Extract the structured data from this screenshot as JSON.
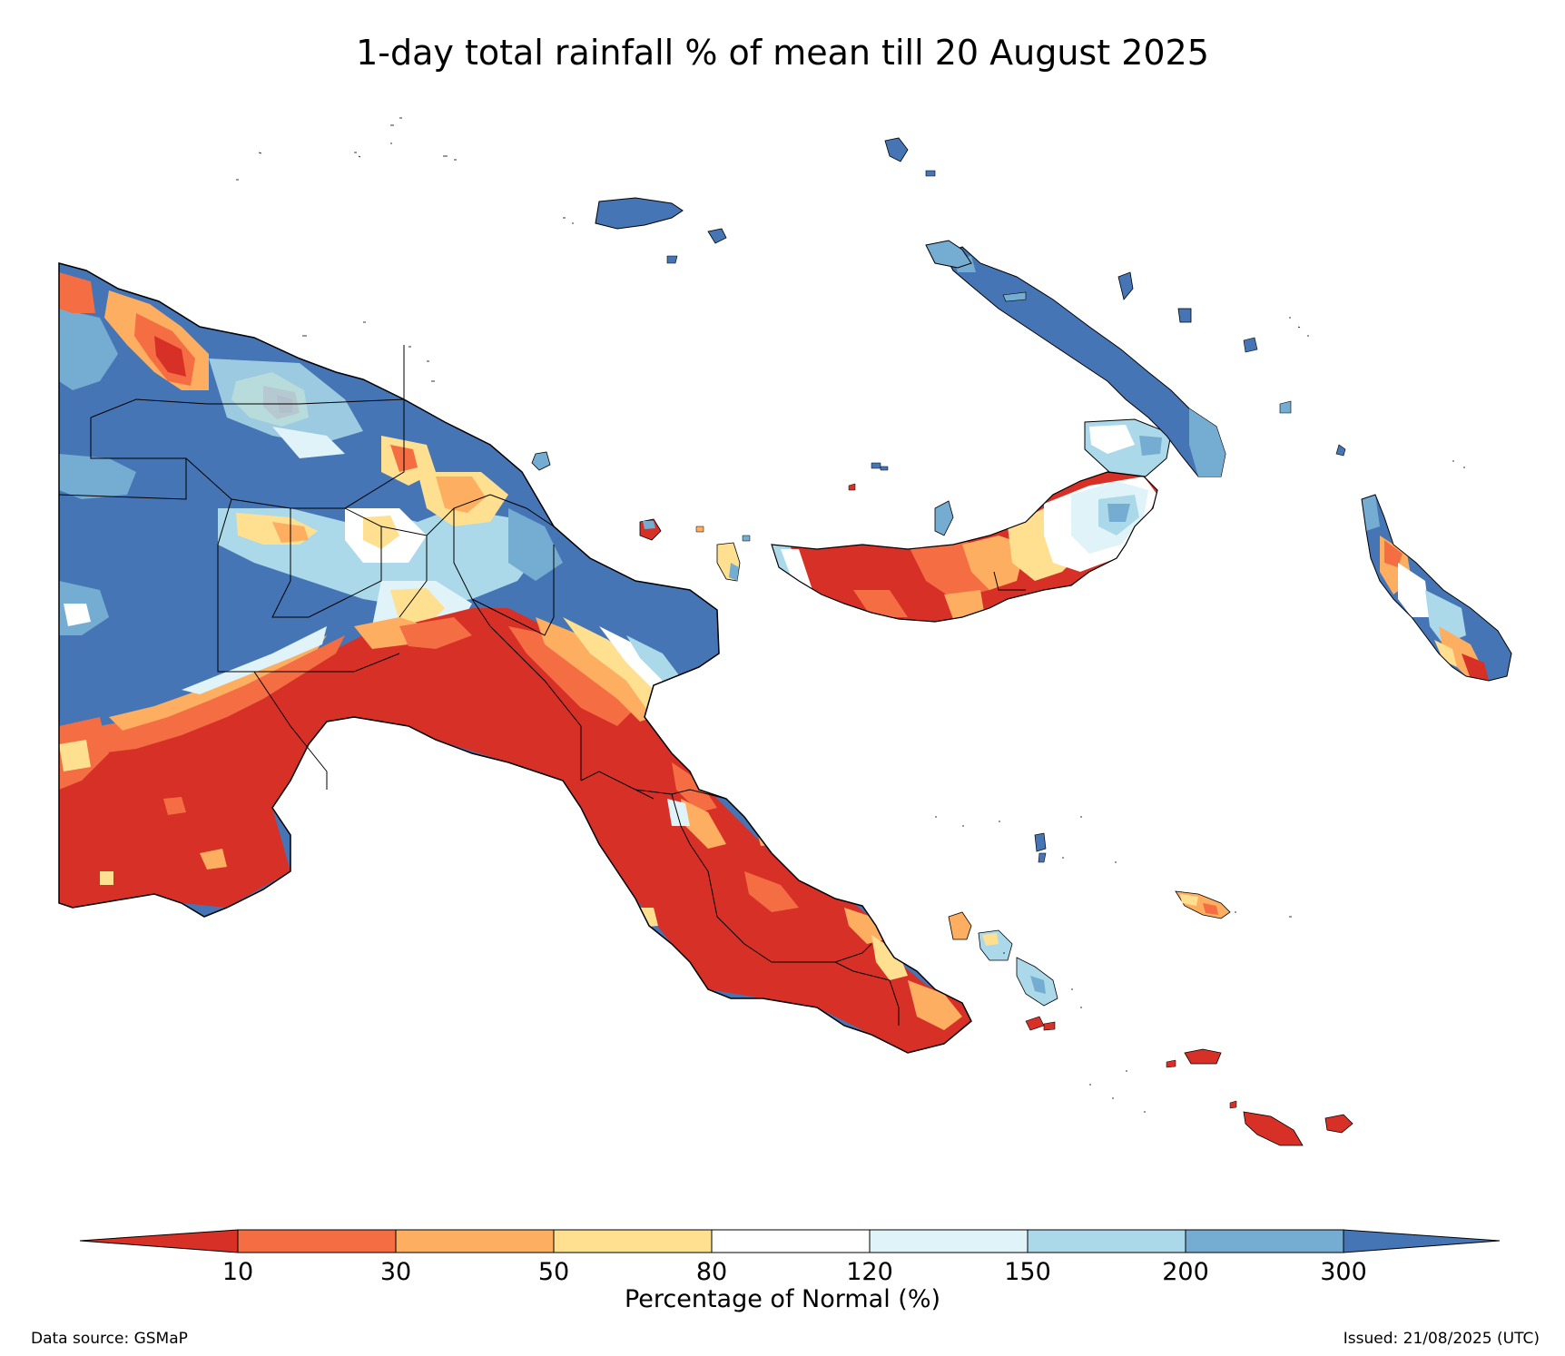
{
  "title": "1-day total rainfall % of mean till 20 August 2025",
  "colorbar": {
    "title": "Percentage of Normal (%)",
    "ticks": [
      "10",
      "30",
      "50",
      "80",
      "120",
      "150",
      "200",
      "300"
    ],
    "colors": [
      "#d73027",
      "#f46d43",
      "#fdae61",
      "#fee090",
      "#ffffff",
      "#e0f3f8",
      "#abd9e9",
      "#74add1",
      "#4575b4"
    ]
  },
  "footer": {
    "source": "Data source: GSMaP",
    "issued": "Issued: 21/08/2025 (UTC)"
  },
  "palette": {
    "dry_extreme": "#d73027",
    "dry": "#f46d43",
    "below": "#fdae61",
    "slightly_below": "#fee090",
    "normal": "#ffffff",
    "slightly_above": "#e0f3f8",
    "above": "#abd9e9",
    "wet": "#74add1",
    "wet_extreme": "#4575b4"
  }
}
